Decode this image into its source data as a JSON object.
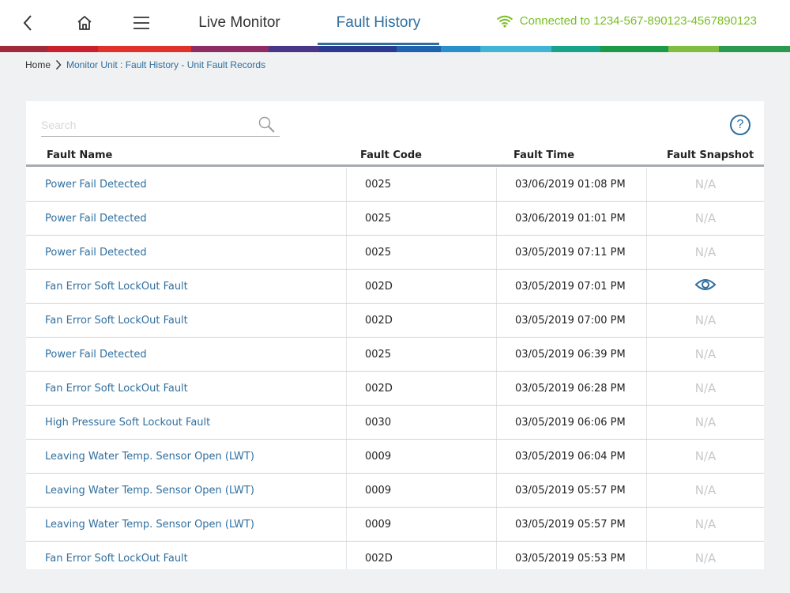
{
  "header": {
    "tabs": [
      {
        "label": "Live Monitor",
        "active": false
      },
      {
        "label": "Fault History",
        "active": true
      }
    ],
    "connection": {
      "text": "Connected to 1234-567-890123-4567890123",
      "icon": "wifi-icon",
      "color": "#78be20"
    },
    "icons": [
      "back-arrow-icon",
      "home-icon",
      "menu-icon"
    ]
  },
  "brand_stripe": [
    "#9e2a3b",
    "#c9202e",
    "#e0322a",
    "#8e2d64",
    "#4a3687",
    "#2b3a8f",
    "#1f63ad",
    "#2b8fc9",
    "#43b5d4",
    "#1ba28a",
    "#1d9a47",
    "#7fbe42",
    "#2b9a4e"
  ],
  "breadcrumb": {
    "home": "Home",
    "current": "Monitor Unit : Fault History - Unit Fault Records"
  },
  "search": {
    "placeholder": "Search",
    "value": ""
  },
  "help_label": "?",
  "table": {
    "headers": {
      "name": "Fault Name",
      "code": "Fault Code",
      "time": "Fault Time",
      "snapshot": "Fault Snapshot"
    },
    "rows": [
      {
        "name": "Power Fail Detected",
        "code": "0025",
        "time": "03/06/2019 01:08 PM",
        "snapshot": "N/A"
      },
      {
        "name": "Power Fail Detected",
        "code": "0025",
        "time": "03/06/2019 01:01 PM",
        "snapshot": "N/A"
      },
      {
        "name": "Power Fail Detected",
        "code": "0025",
        "time": "03/05/2019 07:11 PM",
        "snapshot": "N/A"
      },
      {
        "name": "Fan Error Soft LockOut Fault",
        "code": "002D",
        "time": "03/05/2019 07:01 PM",
        "snapshot": "",
        "snapshot_icon": "eye-icon"
      },
      {
        "name": "Fan Error Soft LockOut Fault",
        "code": "002D",
        "time": "03/05/2019 07:00 PM",
        "snapshot": "N/A"
      },
      {
        "name": "Power Fail Detected",
        "code": "0025",
        "time": "03/05/2019 06:39 PM",
        "snapshot": "N/A"
      },
      {
        "name": "Fan Error Soft LockOut Fault",
        "code": "002D",
        "time": "03/05/2019 06:28 PM",
        "snapshot": "N/A"
      },
      {
        "name": "High Pressure Soft Lockout Fault",
        "code": "0030",
        "time": "03/05/2019 06:06 PM",
        "snapshot": "N/A"
      },
      {
        "name": "Leaving Water Temp. Sensor Open (LWT)",
        "code": "0009",
        "time": "03/05/2019 06:04 PM",
        "snapshot": "N/A"
      },
      {
        "name": "Leaving Water Temp. Sensor Open (LWT)",
        "code": "0009",
        "time": "03/05/2019 05:57 PM",
        "snapshot": "N/A"
      },
      {
        "name": "Leaving Water Temp. Sensor Open (LWT)",
        "code": "0009",
        "time": "03/05/2019 05:57 PM",
        "snapshot": "N/A"
      },
      {
        "name": "Fan Error Soft LockOut Fault",
        "code": "002D",
        "time": "03/05/2019 05:53 PM",
        "snapshot": "N/A"
      }
    ]
  }
}
